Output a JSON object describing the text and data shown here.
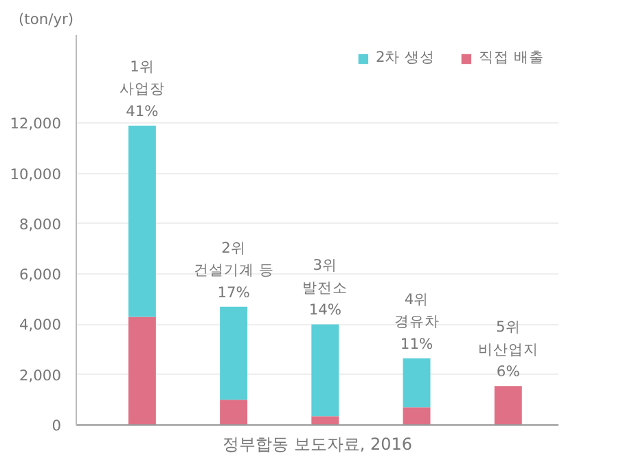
{
  "chart_data": {
    "type": "bar",
    "stacked": true,
    "ylabel": "(ton/yr)",
    "categories": [
      null,
      null,
      null,
      null,
      null
    ],
    "series": [
      {
        "name": "직접 배출",
        "color": "#e07085",
        "values": [
          4300,
          1000,
          350,
          700,
          1550
        ]
      },
      {
        "name": "2차 생성",
        "color": "#5bcfd8",
        "values": [
          7600,
          3700,
          3650,
          1950,
          0
        ]
      }
    ],
    "ylim": [
      0,
      15500
    ],
    "yticks": [
      0,
      {
        "value": 2000,
        "label": "2,000"
      },
      {
        "value": 4000,
        "label": "4,000"
      },
      {
        "value": 6000,
        "label": "6,000"
      },
      {
        "value": 8000,
        "label": "8,000"
      },
      {
        "value": 10000,
        "label": "10,000"
      },
      {
        "value": 12000,
        "label": "12,000"
      }
    ],
    "grid": "y",
    "legend": "top right",
    "annotations": [
      {
        "text": "1위\n사업장\n41%",
        "y": 11900
      },
      {
        "text": "2위\n건설기계 등\n17%",
        "y": 4700
      },
      {
        "text": "3위\n발전소\n14%",
        "y": 4000
      },
      {
        "text": "4위\n경유차\n11%",
        "y": 2650
      },
      {
        "text": "5위\n비산업지\n6%",
        "y": 1550
      },
      "정부합동 보도자료, 2016"
    ]
  }
}
